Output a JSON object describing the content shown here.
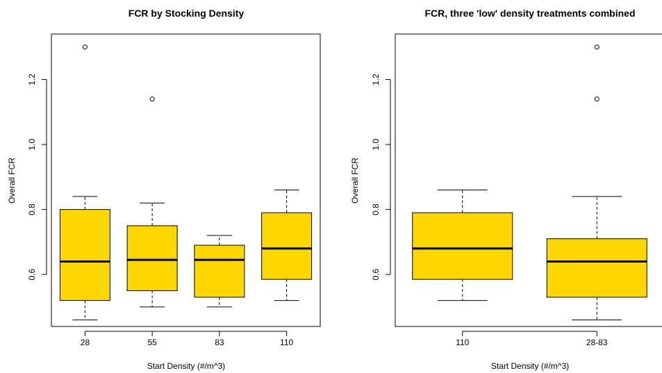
{
  "chart_data": [
    {
      "type": "boxplot",
      "title": "FCR by Stocking Density",
      "xlabel": "Start Density (#/m^3)",
      "ylabel": "Overall FCR",
      "ylim": [
        0.44,
        1.34
      ],
      "yticks": [
        "0.6",
        "0.8",
        "1.0",
        "1.2"
      ],
      "box_color": "#FFD700",
      "boxes": [
        {
          "category": "28",
          "whisker_low": 0.46,
          "q1": 0.52,
          "median": 0.64,
          "q3": 0.8,
          "whisker_high": 0.84,
          "outliers": [
            1.3
          ]
        },
        {
          "category": "55",
          "whisker_low": 0.5,
          "q1": 0.55,
          "median": 0.645,
          "q3": 0.75,
          "whisker_high": 0.82,
          "outliers": [
            1.14
          ]
        },
        {
          "category": "83",
          "whisker_low": 0.5,
          "q1": 0.53,
          "median": 0.645,
          "q3": 0.69,
          "whisker_high": 0.72,
          "outliers": []
        },
        {
          "category": "110",
          "whisker_low": 0.52,
          "q1": 0.585,
          "median": 0.68,
          "q3": 0.79,
          "whisker_high": 0.86,
          "outliers": []
        }
      ]
    },
    {
      "type": "boxplot",
      "title": "FCR, three 'low' density treatments combined",
      "xlabel": "Start Density (#/m^3)",
      "ylabel": "Overall FCR",
      "ylim": [
        0.44,
        1.34
      ],
      "yticks": [
        "0.6",
        "0.8",
        "1.0",
        "1.2"
      ],
      "box_color": "#FFD700",
      "boxes": [
        {
          "category": "110",
          "whisker_low": 0.52,
          "q1": 0.585,
          "median": 0.68,
          "q3": 0.79,
          "whisker_high": 0.86,
          "outliers": []
        },
        {
          "category": "28-83",
          "whisker_low": 0.46,
          "q1": 0.53,
          "median": 0.64,
          "q3": 0.71,
          "whisker_high": 0.84,
          "outliers": [
            1.3,
            1.14
          ]
        }
      ]
    }
  ]
}
